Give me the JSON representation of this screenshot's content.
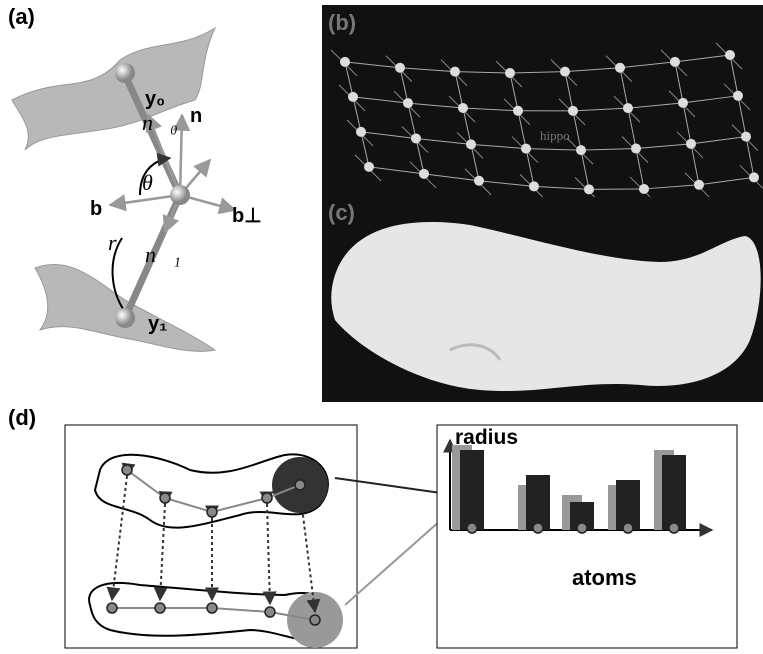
{
  "panel_a": {
    "label": "(a)",
    "y0": "y₀",
    "n0": "n⃗₀",
    "n": "n",
    "theta": "θ",
    "b": "b",
    "b_perp": "b⊥",
    "r": "r",
    "n1": "n⃗₁",
    "y1": "y₁"
  },
  "panel_b": {
    "label": "(b)",
    "caption": "hippo"
  },
  "panel_c": {
    "label": "(c)"
  },
  "panel_d": {
    "label": "(d)",
    "y_axis": "radius",
    "x_axis": "atoms"
  }
}
